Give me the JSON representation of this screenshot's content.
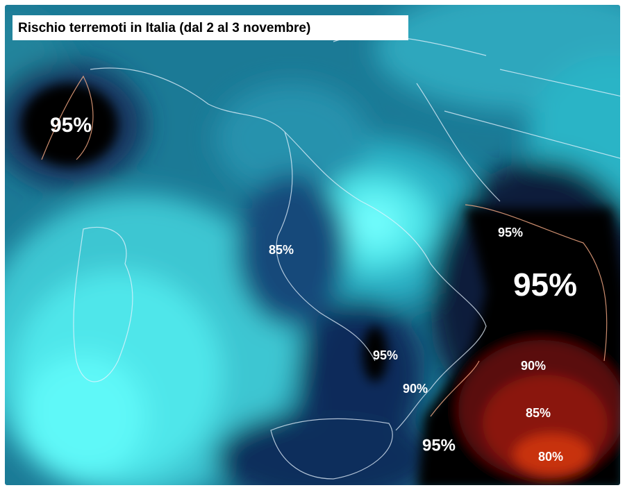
{
  "title": "Rischio terremoti in Italia (dal 2 al 3 novembre)",
  "labels": [
    "95%",
    "95%",
    "95%",
    "85%",
    "95%",
    "90%",
    "95%",
    "90%",
    "85%",
    "80%"
  ]
}
